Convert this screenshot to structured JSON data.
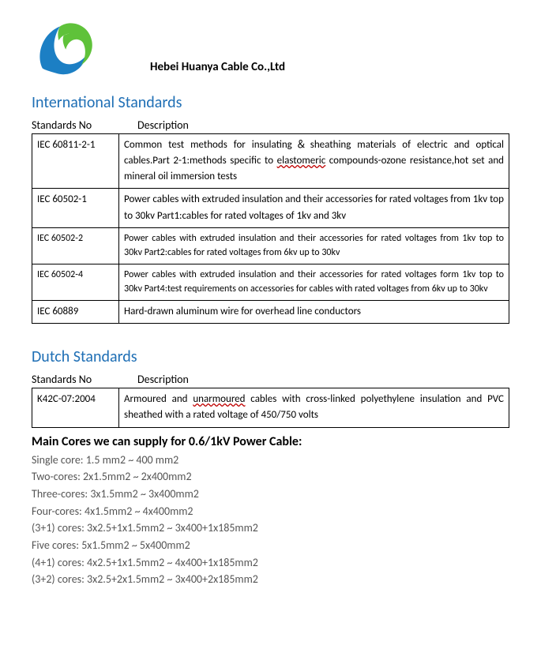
{
  "company_name": "Hebei Huanya Cable Co.,Ltd",
  "logo": {
    "blue": "#1c7fc4",
    "green": "#5fc23a"
  },
  "section1": {
    "title": "International Standards",
    "col1": "Standards No",
    "col2": "Description",
    "rows": [
      {
        "no": "IEC 60811-2-1",
        "desc_prefix": "Common test methods for insulating＆sheathing materials of electric and optical cables.Part 2-1:methods specific to ",
        "desc_underlined": "elastomeric",
        "desc_suffix": " compounds-ozone resistance,hot set and mineral oil immersion tests",
        "small": false
      },
      {
        "no": "IEC 60502-1",
        "desc": "Power cables with extruded insulation and their accessories for rated voltages from 1kv top to 30kv Part1:cables for rated voltages of 1kv and 3kv",
        "small": false
      },
      {
        "no": "IEC 60502-2",
        "desc": "Power cables with extruded insulation and their accessories for rated voltages from 1kv top to 30kv Part2:cables for rated voltages    from 6kv up to 30kv",
        "small": true
      },
      {
        "no": "IEC 60502-4",
        "desc": "Power cables with extruded insulation and their accessories for rated voltages form 1kv top to 30kv Part4:test requirements on accessories for cables with rated voltages from 6kv up to 30kv",
        "small": true
      },
      {
        "no": "IEC 60889",
        "desc": "Hard-drawn aluminum wire for overhead line conductors",
        "small": false
      }
    ]
  },
  "section2": {
    "title": "Dutch Standards",
    "col1": "Standards No",
    "col2": "Description",
    "rows": [
      {
        "no": "K42C-07:2004",
        "desc_prefix": "Armoured and ",
        "desc_underlined": "unarmoured",
        "desc_suffix": " cables with cross-linked polyethylene insulation and PVC sheathed with a rated voltage of 450/750 volts"
      }
    ]
  },
  "cores": {
    "title": "Main Cores we can supply for 0.6/1kV Power Cable:",
    "lines": [
      "Single core: 1.5 mm2 ~ 400 mm2",
      "Two-cores: 2x1.5mm2 ~ 2x400mm2",
      "Three-cores: 3x1.5mm2 ~ 3x400mm2",
      "Four-cores: 4x1.5mm2 ~ 4x400mm2",
      "(3+1) cores: 3x2.5+1x1.5mm2 ~ 3x400+1x185mm2",
      "Five cores: 5x1.5mm2 ~ 5x400mm2",
      "(4+1) cores: 4x2.5+1x1.5mm2 ~ 4x400+1x185mm2",
      "(3+2) cores: 3x2.5+2x1.5mm2 ~ 3x400+2x185mm2"
    ]
  }
}
